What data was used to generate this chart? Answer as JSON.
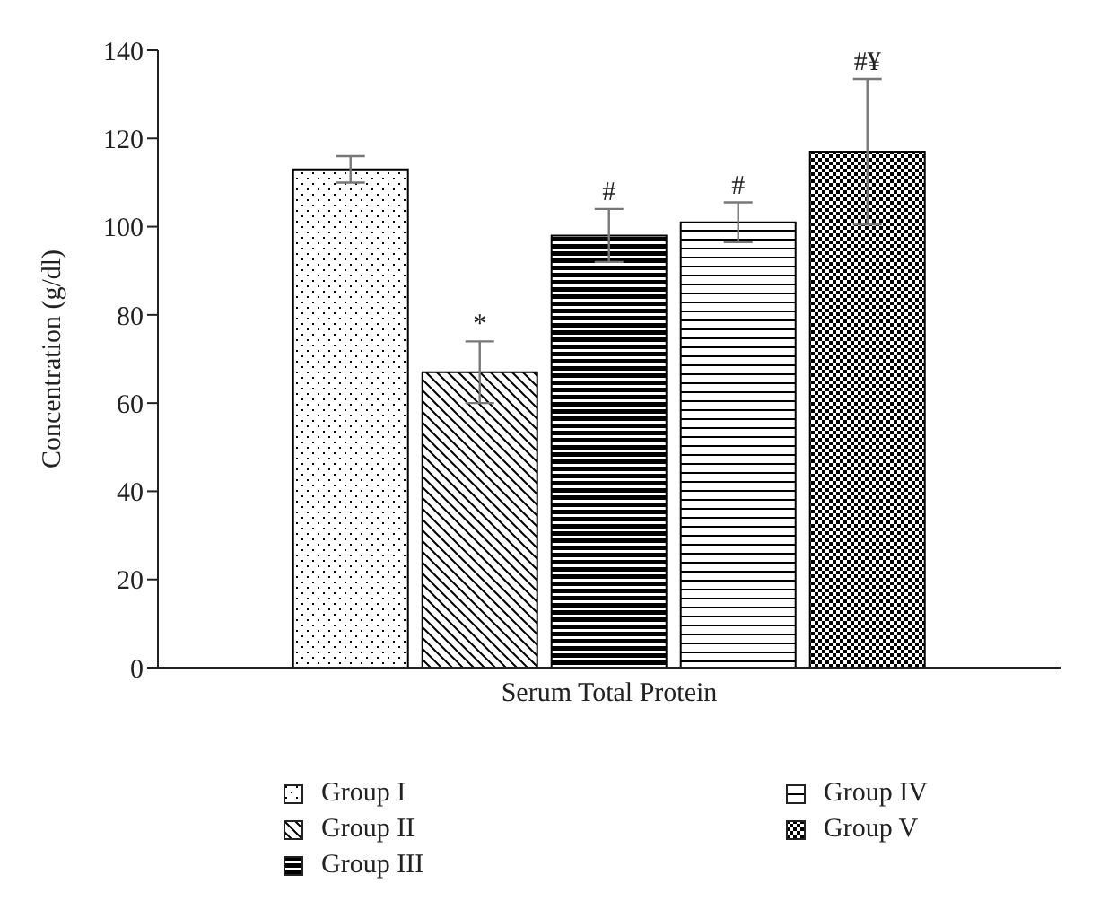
{
  "chart_data": {
    "type": "bar",
    "xlabel": "Serum Total Protein",
    "ylabel": "Concentration (g/dl)",
    "categories": [
      null
    ],
    "series": [
      {
        "name": "Group I",
        "color": "#000000",
        "values": [
          113
        ],
        "errors": [
          3
        ]
      },
      {
        "name": "Group II",
        "color": "#000000",
        "values": [
          67
        ],
        "errors": [
          7
        ]
      },
      {
        "name": "Group III",
        "color": "#000000",
        "values": [
          98
        ],
        "errors": [
          6
        ]
      },
      {
        "name": "Group IV",
        "color": "#000000",
        "values": [
          101
        ],
        "errors": [
          4.5
        ]
      },
      {
        "name": "Group V",
        "color": "#000000",
        "values": [
          117
        ],
        "errors": [
          16.5
        ]
      }
    ],
    "annotations": [
      {
        "text": "*",
        "y": 76
      },
      {
        "text": "#",
        "y": 104
      },
      {
        "text": "#",
        "y": 106
      },
      {
        "text": "#¥",
        "y": 135
      }
    ],
    "ylim": [
      0,
      140
    ],
    "yticks": [
      0,
      20,
      40,
      60,
      80,
      100,
      120,
      140
    ],
    "grid": false,
    "legend": "bottom"
  }
}
